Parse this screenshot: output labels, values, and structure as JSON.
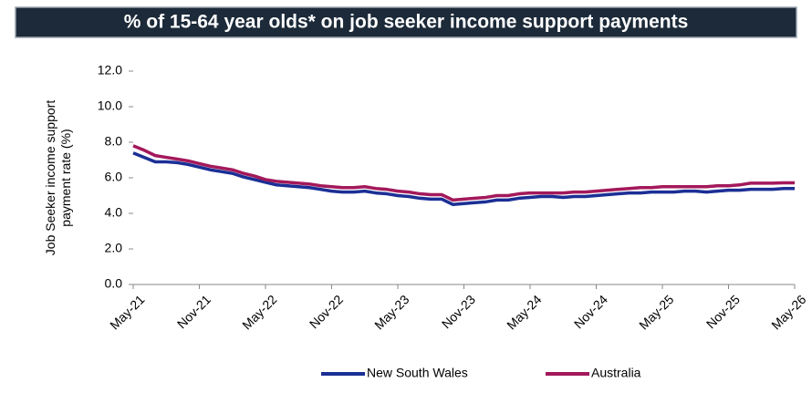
{
  "chart_data": {
    "type": "line",
    "title": "% of 15-64 year olds* on job seeker income support payments",
    "ylabel": [
      "Job Seeker income support",
      "payment rate (%)"
    ],
    "categories": [
      "May-21",
      null,
      null,
      null,
      null,
      null,
      "Nov-21",
      null,
      null,
      null,
      null,
      null,
      "May-22",
      null,
      null,
      null,
      null,
      null,
      "Nov-22",
      null,
      null,
      null,
      null,
      null,
      "May-23",
      null,
      null,
      null,
      null,
      null,
      "Nov-23",
      null,
      null,
      null,
      null,
      null,
      "May-24",
      null,
      null,
      null,
      null,
      null,
      "Nov-24",
      null,
      null,
      null,
      null,
      null,
      "May-25",
      null,
      null,
      null,
      null,
      null,
      "Nov-25",
      null,
      null,
      null,
      null,
      null,
      "May-26"
    ],
    "series": [
      {
        "name": "New South Wales",
        "color": "#1b2f95",
        "values": [
          7.4,
          7.15,
          6.9,
          6.9,
          6.85,
          6.75,
          6.6,
          6.45,
          6.35,
          6.25,
          6.05,
          5.9,
          5.75,
          5.6,
          5.55,
          5.5,
          5.45,
          5.35,
          5.25,
          5.2,
          5.2,
          5.25,
          5.15,
          5.1,
          5.0,
          4.95,
          4.85,
          4.8,
          4.8,
          4.5,
          4.55,
          4.6,
          4.65,
          4.75,
          4.75,
          4.85,
          4.9,
          4.95,
          4.95,
          4.9,
          4.95,
          4.95,
          5.0,
          5.05,
          5.1,
          5.15,
          5.15,
          5.2,
          5.2,
          5.2,
          5.25,
          5.25,
          5.2,
          5.25,
          5.3,
          5.3,
          5.35,
          5.35,
          5.35,
          5.4,
          5.4
        ]
      },
      {
        "name": "Australia",
        "color": "#a3195b",
        "values": [
          7.8,
          7.55,
          7.25,
          7.15,
          7.05,
          6.95,
          6.8,
          6.65,
          6.55,
          6.45,
          6.25,
          6.1,
          5.9,
          5.8,
          5.75,
          5.7,
          5.65,
          5.55,
          5.5,
          5.45,
          5.45,
          5.5,
          5.4,
          5.35,
          5.25,
          5.2,
          5.1,
          5.05,
          5.05,
          4.75,
          4.8,
          4.85,
          4.9,
          5.0,
          5.0,
          5.1,
          5.15,
          5.15,
          5.15,
          5.15,
          5.2,
          5.2,
          5.25,
          5.3,
          5.35,
          5.4,
          5.45,
          5.45,
          5.5,
          5.5,
          5.5,
          5.5,
          5.5,
          5.55,
          5.55,
          5.6,
          5.7,
          5.7,
          5.7,
          5.72,
          5.72
        ]
      }
    ],
    "ylim": [
      0,
      12
    ],
    "yticks": [
      {
        "value": 0,
        "label": "0.0"
      },
      {
        "value": 2,
        "label": "2.0"
      },
      {
        "value": 4,
        "label": "4.0"
      },
      {
        "value": 6,
        "label": "6.0"
      },
      {
        "value": 8,
        "label": "8.0"
      },
      {
        "value": 10,
        "label": "10.0"
      },
      {
        "value": 12,
        "label": "12.0"
      }
    ],
    "legend": "bottom"
  }
}
